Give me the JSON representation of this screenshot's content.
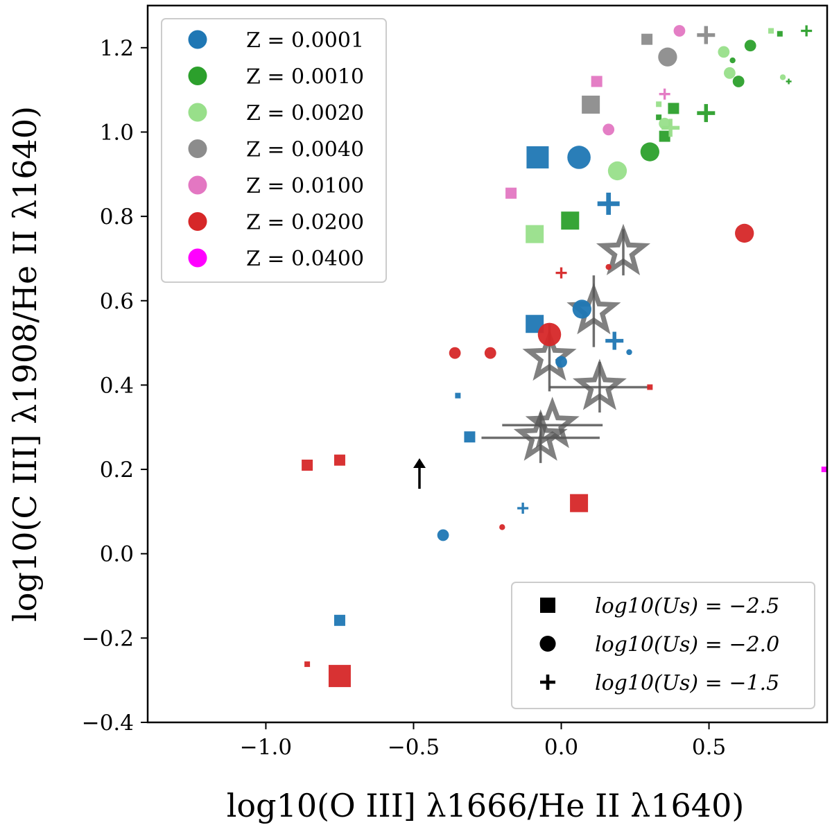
{
  "chart_data": {
    "type": "scatter",
    "xlabel": "log10(O III] λ1666/He II λ1640)",
    "ylabel": "log10(C III] λ1908/He II λ1640)",
    "xlim": [
      -1.4,
      0.9
    ],
    "ylim": [
      -0.4,
      1.3
    ],
    "xticks": [
      -1.0,
      -0.5,
      0.0,
      0.5
    ],
    "xtick_labels": [
      "−1.0",
      "−0.5",
      "0.0",
      "0.5"
    ],
    "yticks": [
      -0.4,
      -0.2,
      0.0,
      0.2,
      0.4,
      0.6,
      0.8,
      1.0,
      1.2
    ],
    "ytick_labels": [
      "−0.4",
      "−0.2",
      "0.0",
      "0.2",
      "0.4",
      "0.6",
      "0.8",
      "1.0",
      "1.2"
    ],
    "colors": {
      "Z0001": "#1f77b4",
      "Z0010": "#2ca02c",
      "Z0020": "#98df8a",
      "Z0040": "#8c8c8c",
      "Z0100": "#e377c2",
      "Z0200": "#d62728",
      "Z0400": "#ff00ff",
      "observed": "#555555",
      "arrow": "#000000"
    },
    "legend_metallicity": {
      "location": "top-left",
      "entries": [
        {
          "key": "Z0001",
          "label": "Z = 0.0001"
        },
        {
          "key": "Z0010",
          "label": "Z = 0.0010"
        },
        {
          "key": "Z0020",
          "label": "Z = 0.0020"
        },
        {
          "key": "Z0040",
          "label": "Z = 0.0040"
        },
        {
          "key": "Z0100",
          "label": "Z = 0.0100"
        },
        {
          "key": "Z0200",
          "label": "Z = 0.0200"
        },
        {
          "key": "Z0400",
          "label": "Z = 0.0400"
        }
      ]
    },
    "legend_ionization": {
      "location": "bottom-right",
      "entries": [
        {
          "marker": "square",
          "label": "log10(Us) = −2.5"
        },
        {
          "marker": "circle",
          "label": "log10(Us) = −2.0"
        },
        {
          "marker": "plus",
          "label": "log10(Us) = −1.5"
        }
      ]
    },
    "series": [
      {
        "name": "Z = 0.0001",
        "color_key": "Z0001",
        "points": [
          {
            "x": -0.08,
            "y": 0.94,
            "marker": "square",
            "size": "large"
          },
          {
            "x": 0.06,
            "y": 0.94,
            "marker": "circle",
            "size": "large"
          },
          {
            "x": 0.16,
            "y": 0.83,
            "marker": "plus",
            "size": "large"
          },
          {
            "x": -0.09,
            "y": 0.545,
            "marker": "square",
            "size": "medium"
          },
          {
            "x": 0.07,
            "y": 0.58,
            "marker": "circle",
            "size": "medium"
          },
          {
            "x": 0.18,
            "y": 0.505,
            "marker": "plus",
            "size": "medium"
          },
          {
            "x": 0.0,
            "y": 0.455,
            "marker": "circle",
            "size": "small"
          },
          {
            "x": 0.23,
            "y": 0.478,
            "marker": "circle",
            "size": "tiny"
          },
          {
            "x": -0.35,
            "y": 0.375,
            "marker": "square",
            "size": "tiny"
          },
          {
            "x": -0.31,
            "y": 0.277,
            "marker": "square",
            "size": "small"
          },
          {
            "x": -0.13,
            "y": 0.108,
            "marker": "plus",
            "size": "small"
          },
          {
            "x": -0.4,
            "y": 0.044,
            "marker": "circle",
            "size": "small"
          },
          {
            "x": -0.75,
            "y": -0.158,
            "marker": "square",
            "size": "small"
          }
        ]
      },
      {
        "name": "Z = 0.0010",
        "color_key": "Z0010",
        "points": [
          {
            "x": 0.64,
            "y": 1.205,
            "marker": "circle",
            "size": "small"
          },
          {
            "x": 0.83,
            "y": 1.24,
            "marker": "plus",
            "size": "small"
          },
          {
            "x": 0.74,
            "y": 1.233,
            "marker": "square",
            "size": "tiny"
          },
          {
            "x": 0.58,
            "y": 1.17,
            "marker": "circle",
            "size": "tiny"
          },
          {
            "x": 0.6,
            "y": 1.12,
            "marker": "circle",
            "size": "small"
          },
          {
            "x": 0.77,
            "y": 1.12,
            "marker": "plus",
            "size": "tiny"
          },
          {
            "x": 0.38,
            "y": 1.056,
            "marker": "square",
            "size": "small"
          },
          {
            "x": 0.49,
            "y": 1.045,
            "marker": "plus",
            "size": "medium"
          },
          {
            "x": 0.35,
            "y": 0.99,
            "marker": "square",
            "size": "small"
          },
          {
            "x": 0.33,
            "y": 1.035,
            "marker": "square",
            "size": "tiny"
          },
          {
            "x": 0.3,
            "y": 0.953,
            "marker": "circle",
            "size": "medium"
          },
          {
            "x": 0.03,
            "y": 0.79,
            "marker": "square",
            "size": "medium"
          }
        ]
      },
      {
        "name": "Z = 0.0020",
        "color_key": "Z0020",
        "points": [
          {
            "x": 0.55,
            "y": 1.19,
            "marker": "circle",
            "size": "small"
          },
          {
            "x": 0.57,
            "y": 1.14,
            "marker": "circle",
            "size": "small"
          },
          {
            "x": 0.71,
            "y": 1.24,
            "marker": "square",
            "size": "tiny"
          },
          {
            "x": 0.75,
            "y": 1.13,
            "marker": "circle",
            "size": "tiny"
          },
          {
            "x": 0.33,
            "y": 1.066,
            "marker": "square",
            "size": "tiny"
          },
          {
            "x": 0.35,
            "y": 1.02,
            "marker": "circle",
            "size": "small"
          },
          {
            "x": 0.37,
            "y": 1.01,
            "marker": "plus",
            "size": "medium"
          },
          {
            "x": 0.19,
            "y": 0.908,
            "marker": "circle",
            "size": "medium"
          },
          {
            "x": -0.09,
            "y": 0.758,
            "marker": "square",
            "size": "medium"
          }
        ]
      },
      {
        "name": "Z = 0.0040",
        "color_key": "Z0040",
        "points": [
          {
            "x": 0.29,
            "y": 1.22,
            "marker": "square",
            "size": "small"
          },
          {
            "x": 0.49,
            "y": 1.23,
            "marker": "plus",
            "size": "medium"
          },
          {
            "x": 0.36,
            "y": 1.178,
            "marker": "circle",
            "size": "medium"
          },
          {
            "x": 0.1,
            "y": 1.065,
            "marker": "square",
            "size": "medium"
          }
        ]
      },
      {
        "name": "Z = 0.0100",
        "color_key": "Z0100",
        "points": [
          {
            "x": 0.4,
            "y": 1.24,
            "marker": "circle",
            "size": "small"
          },
          {
            "x": 0.12,
            "y": 1.12,
            "marker": "square",
            "size": "small"
          },
          {
            "x": 0.35,
            "y": 1.09,
            "marker": "plus",
            "size": "small"
          },
          {
            "x": 0.16,
            "y": 1.006,
            "marker": "circle",
            "size": "small"
          },
          {
            "x": -0.17,
            "y": 0.855,
            "marker": "square",
            "size": "small"
          }
        ]
      },
      {
        "name": "Z = 0.0200",
        "color_key": "Z0200",
        "points": [
          {
            "x": 0.62,
            "y": 0.76,
            "marker": "circle",
            "size": "medium"
          },
          {
            "x": 0.0,
            "y": 0.666,
            "marker": "plus",
            "size": "small"
          },
          {
            "x": 0.16,
            "y": 0.68,
            "marker": "circle",
            "size": "tiny"
          },
          {
            "x": -0.04,
            "y": 0.52,
            "marker": "circle",
            "size": "large"
          },
          {
            "x": -0.36,
            "y": 0.476,
            "marker": "circle",
            "size": "small"
          },
          {
            "x": -0.24,
            "y": 0.476,
            "marker": "circle",
            "size": "small"
          },
          {
            "x": 0.3,
            "y": 0.395,
            "marker": "square",
            "size": "tiny"
          },
          {
            "x": -0.86,
            "y": 0.21,
            "marker": "square",
            "size": "small"
          },
          {
            "x": -0.75,
            "y": 0.222,
            "marker": "square",
            "size": "small"
          },
          {
            "x": 0.06,
            "y": 0.12,
            "marker": "square",
            "size": "medium"
          },
          {
            "x": -0.2,
            "y": 0.063,
            "marker": "circle",
            "size": "tiny"
          },
          {
            "x": -0.86,
            "y": -0.262,
            "marker": "square",
            "size": "tiny"
          },
          {
            "x": -0.75,
            "y": -0.29,
            "marker": "square",
            "size": "large"
          }
        ]
      },
      {
        "name": "Z = 0.0400",
        "color_key": "Z0400",
        "points": [
          {
            "x": 0.89,
            "y": 0.2,
            "marker": "square",
            "size": "tiny"
          }
        ]
      }
    ],
    "observations": [
      {
        "x": 0.21,
        "y": 0.715,
        "xerr": null,
        "yerr": 0.055
      },
      {
        "x": 0.11,
        "y": 0.575,
        "xerr": null,
        "yerr": 0.085
      },
      {
        "x": -0.04,
        "y": 0.465,
        "xerr": null,
        "yerr": 0.08
      },
      {
        "x": 0.13,
        "y": 0.395,
        "xerr": 0.17,
        "yerr": 0.06
      },
      {
        "x": -0.03,
        "y": 0.305,
        "xerr": 0.17,
        "yerr": null
      },
      {
        "x": -0.07,
        "y": 0.275,
        "xerr": 0.2,
        "yerr": 0.06
      }
    ],
    "lower_limit": {
      "x": -0.48,
      "y": 0.2
    }
  }
}
